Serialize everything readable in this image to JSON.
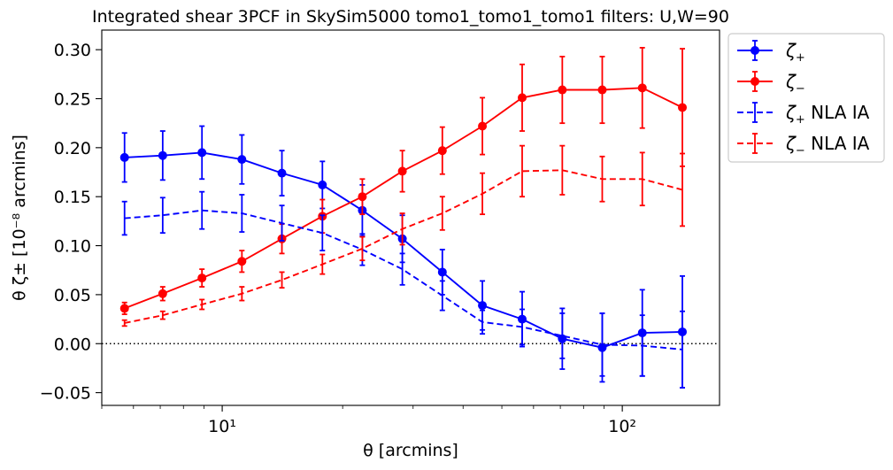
{
  "chart_data": {
    "type": "line",
    "title": "Integrated shear 3PCF in SkySim5000 tomo1_tomo1_tomo1 filters: U,W=90",
    "xlabel": "θ [arcmins]",
    "ylabel": "θ ζ± [10⁻⁸ arcmins]",
    "x_scale": "log",
    "xlim": [
      5.0,
      175.0
    ],
    "ylim": [
      -0.063,
      0.32
    ],
    "x_ticks": [
      10,
      100
    ],
    "x_tick_labels": [
      "10¹",
      "10²"
    ],
    "y_ticks": [
      -0.05,
      0.0,
      0.05,
      0.1,
      0.15,
      0.2,
      0.25,
      0.3
    ],
    "y_tick_labels": [
      "−0.05",
      "0.00",
      "0.05",
      "0.10",
      "0.15",
      "0.20",
      "0.25",
      "0.30"
    ],
    "reference_line": {
      "y": 0.0,
      "style": "dotted",
      "color": "#000000"
    },
    "legend": {
      "placement": "outside-top-right"
    },
    "x": [
      5.7,
      7.1,
      8.9,
      11.2,
      14.1,
      17.8,
      22.4,
      28.2,
      35.5,
      44.7,
      56.2,
      70.8,
      89.1,
      112.2,
      141.3
    ],
    "series": [
      {
        "name": "ζ+",
        "name_main": "ζ",
        "name_sub": "+",
        "name_suffix": "",
        "color": "#0000ff",
        "linestyle": "solid",
        "marker": "circle",
        "values": [
          0.19,
          0.192,
          0.195,
          0.188,
          0.174,
          0.162,
          0.136,
          0.107,
          0.073,
          0.039,
          0.025,
          0.005,
          -0.004,
          0.011,
          0.012
        ],
        "errors": [
          0.025,
          0.025,
          0.027,
          0.025,
          0.023,
          0.024,
          0.026,
          0.024,
          0.023,
          0.025,
          0.028,
          0.031,
          0.035,
          0.044,
          0.057
        ]
      },
      {
        "name": "ζ−",
        "name_main": "ζ",
        "name_sub": "−",
        "name_suffix": "",
        "color": "#ff0000",
        "linestyle": "solid",
        "marker": "circle",
        "values": [
          0.036,
          0.051,
          0.067,
          0.084,
          0.107,
          0.13,
          0.15,
          0.176,
          0.197,
          0.222,
          0.251,
          0.259,
          0.259,
          0.261,
          0.241
        ],
        "errors": [
          0.006,
          0.007,
          0.009,
          0.011,
          0.015,
          0.017,
          0.018,
          0.021,
          0.024,
          0.029,
          0.034,
          0.034,
          0.034,
          0.041,
          0.06
        ]
      },
      {
        "name": "ζ+ NLA IA",
        "name_main": "ζ",
        "name_sub": "+",
        "name_suffix": " NLA IA",
        "color": "#0000ff",
        "linestyle": "dashed",
        "marker": "none",
        "values": [
          0.128,
          0.131,
          0.136,
          0.133,
          0.123,
          0.113,
          0.096,
          0.076,
          0.049,
          0.022,
          0.017,
          0.008,
          -0.001,
          -0.002,
          -0.006
        ],
        "errors": [
          0.017,
          0.018,
          0.019,
          0.019,
          0.018,
          0.018,
          0.016,
          0.016,
          0.015,
          0.012,
          0.018,
          0.023,
          0.032,
          0.031,
          0.039
        ]
      },
      {
        "name": "ζ− NLA IA",
        "name_main": "ζ",
        "name_sub": "−",
        "name_suffix": " NLA IA",
        "color": "#ff0000",
        "linestyle": "dashed",
        "marker": "none",
        "values": [
          0.021,
          0.029,
          0.04,
          0.051,
          0.065,
          0.081,
          0.097,
          0.117,
          0.133,
          0.153,
          0.176,
          0.177,
          0.168,
          0.168,
          0.157
        ],
        "errors": [
          0.003,
          0.004,
          0.005,
          0.007,
          0.008,
          0.01,
          0.012,
          0.016,
          0.017,
          0.021,
          0.026,
          0.025,
          0.023,
          0.027,
          0.037
        ]
      }
    ]
  }
}
